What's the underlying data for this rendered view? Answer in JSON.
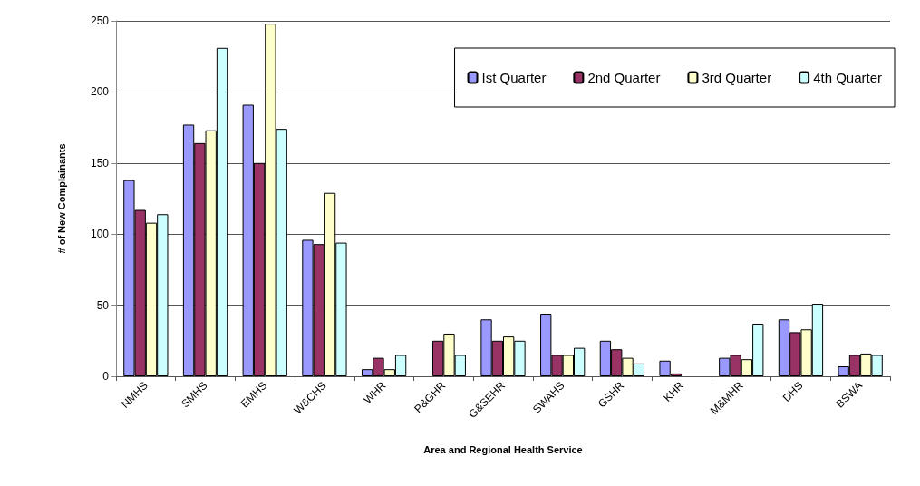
{
  "chart_data": {
    "type": "bar",
    "xlabel": "Area and Regional Health Service",
    "ylabel": "# of New Complainants",
    "categories": [
      "NMHS",
      "SMHS",
      "EMHS",
      "W&CHS",
      "WHR",
      "P&GHR",
      "G&SEHR",
      "SWAHS",
      "GSHR",
      "KHR",
      "M&MHR",
      "DHS",
      "BSWA"
    ],
    "series": [
      {
        "name": "Ist Quarter",
        "color": "#9999ff",
        "values": [
          138,
          177,
          191,
          96,
          5,
          0,
          40,
          44,
          25,
          11,
          13,
          40,
          7
        ]
      },
      {
        "name": "2nd Quarter",
        "color": "#993366",
        "values": [
          117,
          164,
          150,
          93,
          13,
          25,
          25,
          15,
          19,
          2,
          15,
          31,
          15
        ]
      },
      {
        "name": "3rd Quarter",
        "color": "#ffffcc",
        "values": [
          108,
          173,
          248,
          129,
          5,
          30,
          28,
          15,
          13,
          0,
          12,
          33,
          16
        ]
      },
      {
        "name": "4th Quarter",
        "color": "#ccffff",
        "values": [
          114,
          231,
          174,
          94,
          15,
          15,
          25,
          20,
          9,
          0,
          37,
          51,
          15
        ]
      }
    ],
    "ylim": [
      0,
      250
    ],
    "yticks": [
      0,
      50,
      100,
      150,
      200,
      250
    ],
    "grid": "y",
    "legend": "top right"
  }
}
